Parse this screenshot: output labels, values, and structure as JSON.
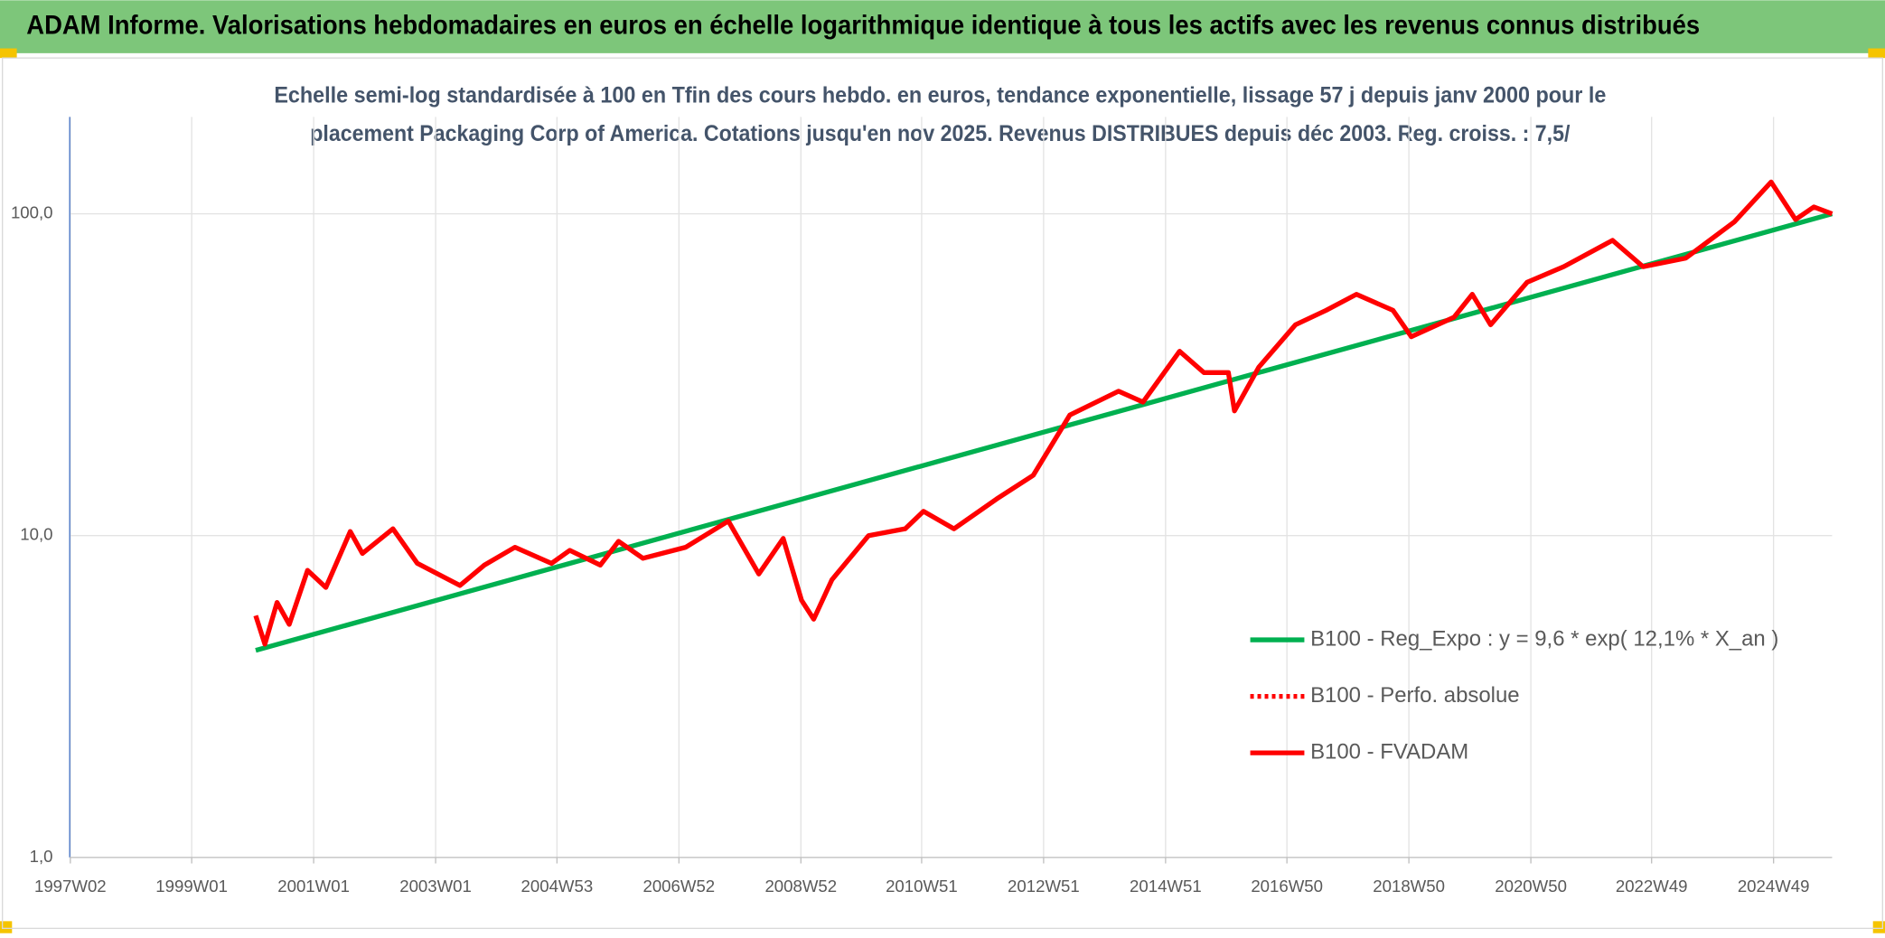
{
  "header": {
    "title": "ADAM Informe. Valorisations hebdomadaires en euros en échelle logarithmique identique à tous les actifs avec les revenus connus distribués"
  },
  "chart_data": {
    "type": "line",
    "subtitle": [
      "Echelle semi-log standardisée à 100 en Tfin des cours hebdo. en euros, tendance exponentielle, lissage 57 j depuis janv 2000 pour le",
      "placement Packaging Corp of America. Cotations jusqu'en nov 2025. Revenus DISTRIBUES depuis déc 2003. Reg. croiss. : 7,5/"
    ],
    "log_scale": true,
    "grid": true,
    "legend": "right",
    "xlim": [
      1997.0,
      2025.9
    ],
    "xticks": [
      {
        "value": 1997.01,
        "label": "1997W02"
      },
      {
        "value": 1999.0,
        "label": "1999W01"
      },
      {
        "value": 2001.0,
        "label": "2001W01"
      },
      {
        "value": 2003.0,
        "label": "2003W01"
      },
      {
        "value": 2004.99,
        "label": "2004W53"
      },
      {
        "value": 2006.99,
        "label": "2006W52"
      },
      {
        "value": 2008.99,
        "label": "2008W52"
      },
      {
        "value": 2010.97,
        "label": "2010W51"
      },
      {
        "value": 2012.97,
        "label": "2012W51"
      },
      {
        "value": 2014.97,
        "label": "2014W51"
      },
      {
        "value": 2016.96,
        "label": "2016W50"
      },
      {
        "value": 2018.96,
        "label": "2018W50"
      },
      {
        "value": 2020.96,
        "label": "2020W50"
      },
      {
        "value": 2022.94,
        "label": "2022W49"
      },
      {
        "value": 2024.94,
        "label": "2024W49"
      }
    ],
    "ylim": [
      1,
      200
    ],
    "yticks": [
      {
        "value": 1,
        "label": "1,0"
      },
      {
        "value": 10,
        "label": "10,0"
      },
      {
        "value": 100,
        "label": "100,0"
      }
    ],
    "series": [
      {
        "name": "B100 - Reg_Expo : y = 9,6 * exp( 12,1% *  X_an )",
        "color": "#00b050",
        "style": "solid",
        "x": [
          2000.05,
          2025.9
        ],
        "values": [
          4.4,
          100
        ]
      },
      {
        "name": "B100 - Perfo. absolue",
        "color": "#ff0000",
        "style": "dotted",
        "x": [
          2000.05,
          2000.2,
          2000.4,
          2000.6,
          2000.9,
          2001.2,
          2001.6,
          2001.8,
          2002.3,
          2002.7,
          2003.4,
          2003.8,
          2004.3,
          2004.9,
          2005.2,
          2005.7,
          2006.0,
          2006.4,
          2007.1,
          2007.8,
          2008.3,
          2008.7,
          2009.0,
          2009.2,
          2009.5,
          2010.1,
          2010.7,
          2011.0,
          2011.5,
          2012.2,
          2012.8,
          2013.4,
          2014.2,
          2014.6,
          2015.2,
          2015.6,
          2016.0,
          2016.1,
          2016.5,
          2017.1,
          2017.6,
          2018.1,
          2018.7,
          2019.0,
          2019.7,
          2020.0,
          2020.3,
          2020.9,
          2021.5,
          2022.3,
          2022.8,
          2023.5,
          2024.3,
          2024.9,
          2025.3,
          2025.6,
          2025.9
        ],
        "values": [
          5.64,
          4.6,
          6.2,
          5.3,
          7.8,
          6.9,
          10.3,
          8.8,
          10.5,
          8.2,
          7.0,
          8.1,
          9.2,
          8.2,
          9.0,
          8.1,
          9.6,
          8.5,
          9.2,
          11.1,
          7.6,
          9.8,
          6.3,
          5.5,
          7.3,
          10.0,
          10.5,
          11.9,
          10.5,
          13.0,
          15.4,
          23.7,
          28.1,
          26.0,
          37.4,
          32.1,
          32.1,
          24.4,
          33.4,
          45.2,
          50.1,
          56.2,
          50.1,
          41.5,
          47.7,
          56.2,
          45.2,
          61.3,
          68.5,
          82.7,
          68.5,
          72.8,
          94.5,
          125.5,
          96.0,
          105.0,
          100.0
        ]
      },
      {
        "name": "B100 - FVADAM",
        "color": "#ff0000",
        "style": "solid",
        "x": [
          2000.05,
          2000.2,
          2000.4,
          2000.6,
          2000.9,
          2001.2,
          2001.6,
          2001.8,
          2002.3,
          2002.7,
          2003.4,
          2003.8,
          2004.3,
          2004.9,
          2005.2,
          2005.7,
          2006.0,
          2006.4,
          2007.1,
          2007.8,
          2008.3,
          2008.7,
          2009.0,
          2009.2,
          2009.5,
          2010.1,
          2010.7,
          2011.0,
          2011.5,
          2012.2,
          2012.8,
          2013.4,
          2014.2,
          2014.6,
          2015.2,
          2015.6,
          2016.0,
          2016.1,
          2016.5,
          2017.1,
          2017.6,
          2018.1,
          2018.7,
          2019.0,
          2019.7,
          2020.0,
          2020.3,
          2020.9,
          2021.5,
          2022.3,
          2022.8,
          2023.5,
          2024.3,
          2024.9,
          2025.3,
          2025.6,
          2025.9
        ],
        "values": [
          5.64,
          4.6,
          6.2,
          5.3,
          7.8,
          6.9,
          10.3,
          8.8,
          10.5,
          8.2,
          7.0,
          8.1,
          9.2,
          8.2,
          9.0,
          8.1,
          9.6,
          8.5,
          9.2,
          11.1,
          7.6,
          9.8,
          6.3,
          5.5,
          7.3,
          10.0,
          10.5,
          11.9,
          10.5,
          13.0,
          15.4,
          23.7,
          28.1,
          26.0,
          37.4,
          32.1,
          32.1,
          24.4,
          33.4,
          45.2,
          50.1,
          56.2,
          50.1,
          41.5,
          47.7,
          56.2,
          45.2,
          61.3,
          68.5,
          82.7,
          68.5,
          72.8,
          94.5,
          125.5,
          96.0,
          105.0,
          100.0
        ]
      }
    ]
  }
}
